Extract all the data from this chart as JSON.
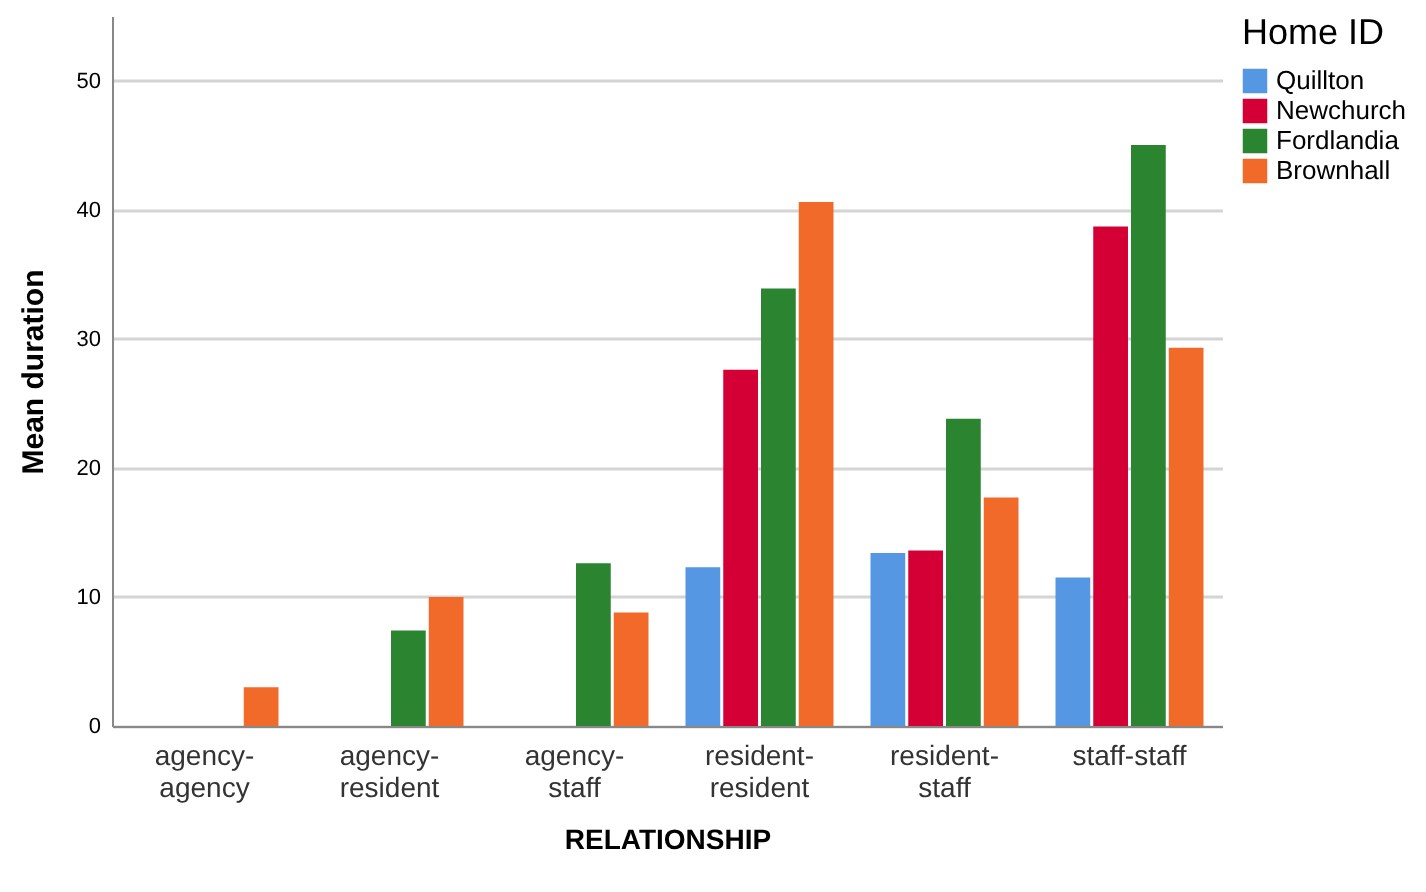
{
  "chart_data": {
    "type": "bar",
    "xlabel": "RELATIONSHIP",
    "ylabel": "Mean duration",
    "legend_title": "Home ID",
    "categories": [
      "agency-agency",
      "agency-resident",
      "agency-staff",
      "resident-resident",
      "resident-staff",
      "staff-staff"
    ],
    "series": [
      {
        "name": "Quillton",
        "color": "#5597e2",
        "values": [
          null,
          null,
          null,
          12.3,
          13.4,
          11.5
        ]
      },
      {
        "name": "Newchurch",
        "color": "#d40035",
        "values": [
          null,
          null,
          null,
          27.6,
          13.6,
          38.7
        ]
      },
      {
        "name": "Fordlandia",
        "color": "#2a8430",
        "values": [
          null,
          7.4,
          12.6,
          33.9,
          23.8,
          45.0
        ]
      },
      {
        "name": "Brownhall",
        "color": "#f26a2a",
        "values": [
          3.0,
          10.0,
          8.8,
          40.6,
          17.7,
          29.3
        ]
      }
    ],
    "ylim": [
      0,
      55
    ],
    "yticks": [
      0,
      10,
      20,
      30,
      40,
      50
    ],
    "grid": "y",
    "legend": "top right"
  }
}
